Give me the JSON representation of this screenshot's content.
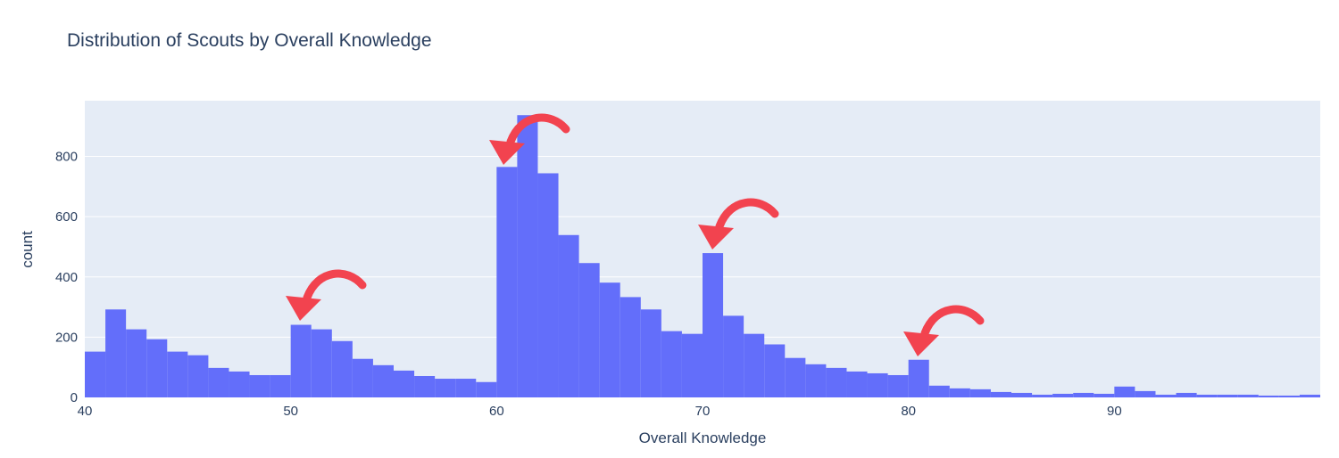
{
  "chart_data": {
    "type": "histogram",
    "title": "Distribution of Scouts by Overall Knowledge",
    "x_label": "Overall Knowledge",
    "y_label": "count",
    "color": "#636efa",
    "bins": [
      40,
      41,
      42,
      43,
      44,
      45,
      46,
      47,
      48,
      49,
      50,
      51,
      52,
      53,
      54,
      55,
      56,
      57,
      58,
      59,
      60,
      61,
      62,
      63,
      64,
      65,
      66,
      67,
      68,
      69,
      70,
      71,
      72,
      73,
      74,
      75,
      76,
      77,
      78,
      79,
      80,
      81,
      82,
      83,
      84,
      85,
      86,
      87,
      88,
      89,
      90,
      91,
      92,
      93,
      94,
      95,
      96,
      97,
      98,
      99,
      100
    ],
    "counts": [
      152,
      292,
      226,
      193,
      152,
      140,
      98,
      86,
      74,
      74,
      241,
      226,
      187,
      128,
      107,
      89,
      71,
      62,
      62,
      51,
      765,
      937,
      744,
      539,
      446,
      381,
      333,
      292,
      220,
      211,
      479,
      271,
      211,
      176,
      131,
      110,
      98,
      86,
      80,
      74,
      125,
      39,
      30,
      27,
      18,
      15,
      9,
      12,
      15,
      12,
      36,
      21,
      9,
      15,
      9,
      9,
      9,
      6,
      6,
      9
    ],
    "xlim": [
      40,
      100
    ],
    "ylim": [
      0,
      985
    ],
    "xticks": [
      40,
      50,
      60,
      70,
      80,
      90
    ],
    "yticks": [
      0,
      200,
      400,
      600,
      800
    ],
    "grid": true
  }
}
